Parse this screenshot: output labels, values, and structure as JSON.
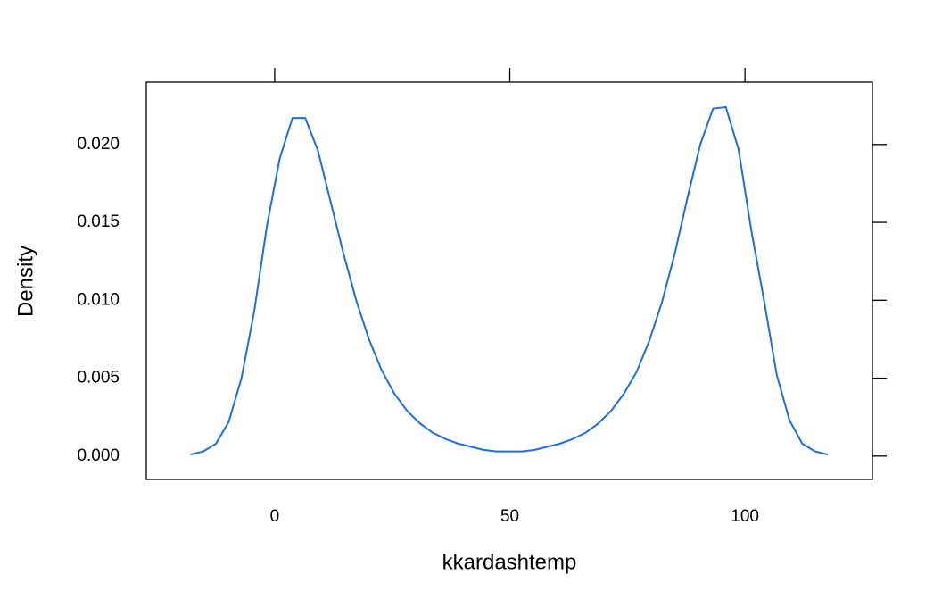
{
  "chart_data": {
    "type": "line",
    "x_label": "kkardashtemp",
    "y_label": "Density",
    "x": [
      -17.9,
      -15.19,
      -12.48,
      -9.77,
      -7.06,
      -4.35,
      -1.64,
      1.07,
      3.78,
      6.49,
      9.2,
      11.91,
      14.62,
      17.33,
      20.04,
      22.75,
      25.46,
      28.17,
      30.88,
      33.59,
      36.3,
      39.01,
      41.72,
      44.43,
      47.14,
      49.85,
      52.56,
      55.27,
      57.98,
      60.69,
      63.4,
      66.11,
      68.82,
      71.53,
      74.24,
      76.95,
      79.66,
      82.37,
      85.08,
      87.79,
      90.5,
      93.21,
      95.92,
      98.63,
      101.34,
      104.05,
      106.76,
      109.47,
      112.18,
      114.89,
      117.6
    ],
    "series": [
      {
        "color": "#1a6fe8",
        "values": [
          0.0001,
          0.0003,
          0.0008,
          0.0022,
          0.005,
          0.0093,
          0.0148,
          0.0191,
          0.0217,
          0.0217,
          0.0196,
          0.0163,
          0.013,
          0.01,
          0.0075,
          0.0055,
          0.004,
          0.0029,
          0.0021,
          0.0015,
          0.0011,
          0.0008,
          0.0006,
          0.0004,
          0.0003,
          0.0003,
          0.0003,
          0.0004,
          0.0006,
          0.0008,
          0.0011,
          0.0015,
          0.0021,
          0.0029,
          0.004,
          0.0054,
          0.0074,
          0.0099,
          0.013,
          0.0166,
          0.02,
          0.0223,
          0.0224,
          0.0197,
          0.0145,
          0.01,
          0.0052,
          0.0023,
          0.0008,
          0.0003,
          0.0001
        ]
      }
    ],
    "xlim": [
      -27.3,
      127.1
    ],
    "xticks": [
      0,
      50,
      100
    ],
    "ylim": [
      -0.0015,
      0.024
    ],
    "yticks": [
      {
        "value": 0,
        "label": "0.000"
      },
      {
        "value": 0.005,
        "label": "0.005"
      },
      {
        "value": 0.01,
        "label": "0.010"
      },
      {
        "value": 0.015,
        "label": "0.015"
      },
      {
        "value": 0.02,
        "label": "0.020"
      }
    ]
  }
}
